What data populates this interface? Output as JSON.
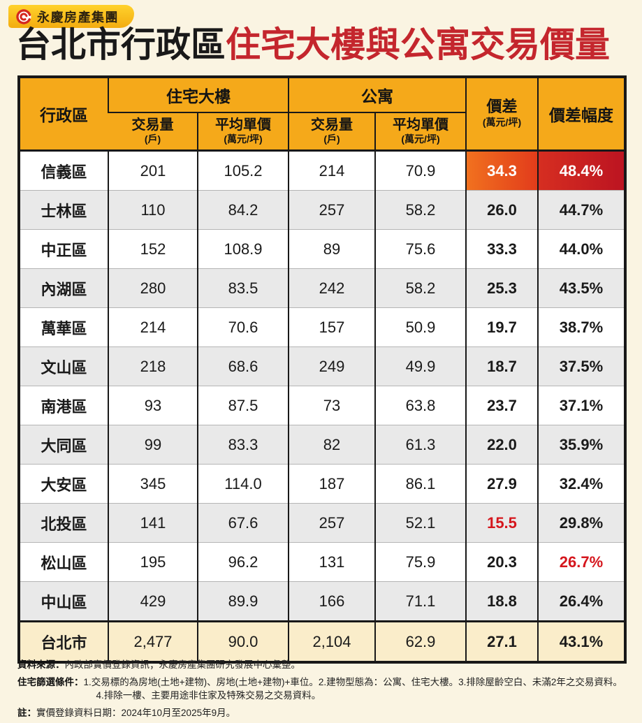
{
  "logo": {
    "company": "永慶房產集團"
  },
  "title": {
    "black_part": "台北市行政區",
    "red_part": "住宅大樓與公寓交易價量"
  },
  "header": {
    "district": "行政區",
    "building_group": "住宅大樓",
    "apartment_group": "公寓",
    "volume": "交易量",
    "volume_unit": "(戶)",
    "avg_price": "平均單價",
    "avg_price_unit": "(萬元/坪)",
    "gap": "價差",
    "gap_unit": "(萬元/坪)",
    "gap_pct": "價差幅度"
  },
  "chart_data": {
    "type": "table",
    "title": "台北市行政區住宅大樓與公寓交易價量",
    "columns": [
      "行政區",
      "住宅大樓 交易量(戶)",
      "住宅大樓 平均單價(萬元/坪)",
      "公寓 交易量(戶)",
      "公寓 平均單價(萬元/坪)",
      "價差(萬元/坪)",
      "價差幅度"
    ],
    "rows": [
      {
        "district": "信義區",
        "building_volume": "201",
        "building_price": "105.2",
        "apt_volume": "214",
        "apt_price": "70.9",
        "gap": "34.3",
        "gap_pct": "48.4%",
        "gap_style": "hl-orange",
        "gap_pct_style": "hl-red"
      },
      {
        "district": "士林區",
        "building_volume": "110",
        "building_price": "84.2",
        "apt_volume": "257",
        "apt_price": "58.2",
        "gap": "26.0",
        "gap_pct": "44.7%",
        "gap_style": "",
        "gap_pct_style": ""
      },
      {
        "district": "中正區",
        "building_volume": "152",
        "building_price": "108.9",
        "apt_volume": "89",
        "apt_price": "75.6",
        "gap": "33.3",
        "gap_pct": "44.0%",
        "gap_style": "",
        "gap_pct_style": ""
      },
      {
        "district": "內湖區",
        "building_volume": "280",
        "building_price": "83.5",
        "apt_volume": "242",
        "apt_price": "58.2",
        "gap": "25.3",
        "gap_pct": "43.5%",
        "gap_style": "",
        "gap_pct_style": ""
      },
      {
        "district": "萬華區",
        "building_volume": "214",
        "building_price": "70.6",
        "apt_volume": "157",
        "apt_price": "50.9",
        "gap": "19.7",
        "gap_pct": "38.7%",
        "gap_style": "",
        "gap_pct_style": ""
      },
      {
        "district": "文山區",
        "building_volume": "218",
        "building_price": "68.6",
        "apt_volume": "249",
        "apt_price": "49.9",
        "gap": "18.7",
        "gap_pct": "37.5%",
        "gap_style": "",
        "gap_pct_style": ""
      },
      {
        "district": "南港區",
        "building_volume": "93",
        "building_price": "87.5",
        "apt_volume": "73",
        "apt_price": "63.8",
        "gap": "23.7",
        "gap_pct": "37.1%",
        "gap_style": "",
        "gap_pct_style": ""
      },
      {
        "district": "大同區",
        "building_volume": "99",
        "building_price": "83.3",
        "apt_volume": "82",
        "apt_price": "61.3",
        "gap": "22.0",
        "gap_pct": "35.9%",
        "gap_style": "",
        "gap_pct_style": ""
      },
      {
        "district": "大安區",
        "building_volume": "345",
        "building_price": "114.0",
        "apt_volume": "187",
        "apt_price": "86.1",
        "gap": "27.9",
        "gap_pct": "32.4%",
        "gap_style": "",
        "gap_pct_style": ""
      },
      {
        "district": "北投區",
        "building_volume": "141",
        "building_price": "67.6",
        "apt_volume": "257",
        "apt_price": "52.1",
        "gap": "15.5",
        "gap_pct": "29.8%",
        "gap_style": "red-text",
        "gap_pct_style": ""
      },
      {
        "district": "松山區",
        "building_volume": "195",
        "building_price": "96.2",
        "apt_volume": "131",
        "apt_price": "75.9",
        "gap": "20.3",
        "gap_pct": "26.7%",
        "gap_style": "",
        "gap_pct_style": "red-text"
      },
      {
        "district": "中山區",
        "building_volume": "429",
        "building_price": "89.9",
        "apt_volume": "166",
        "apt_price": "71.1",
        "gap": "18.8",
        "gap_pct": "26.4%",
        "gap_style": "",
        "gap_pct_style": ""
      }
    ],
    "total": {
      "district": "台北市",
      "building_volume": "2,477",
      "building_price": "90.0",
      "apt_volume": "2,104",
      "apt_price": "62.9",
      "gap": "27.1",
      "gap_pct": "43.1%"
    }
  },
  "notes": {
    "source": {
      "label": "資料來源：",
      "text": "內政部實價登錄資訊；永慶房產集團研究發展中心彙整。"
    },
    "criteria": {
      "label": "住宅篩選條件：",
      "text": "1.交易標的為房地(土地+建物)、房地(土地+建物)+車位。2.建物型態為：公寓、住宅大樓。3.排除屋齡空白、未滿2年之交易資料。",
      "text2": "4.排除一樓、主要用途非住家及特殊交易之交易資料。"
    },
    "remark": {
      "label": "註：",
      "text": "實價登錄資料日期：2024年10月至2025年9月。"
    }
  },
  "colors": {
    "page_bg": "#FAF4E2",
    "header_yellow": "#F5A91A",
    "title_red": "#C4262D",
    "highlight_orange": "#E85A1D",
    "highlight_red": "#C81F22",
    "red_text": "#D5161D",
    "total_row_bg": "#FAEDCA",
    "stripe_gray": "#E9E9E9"
  }
}
